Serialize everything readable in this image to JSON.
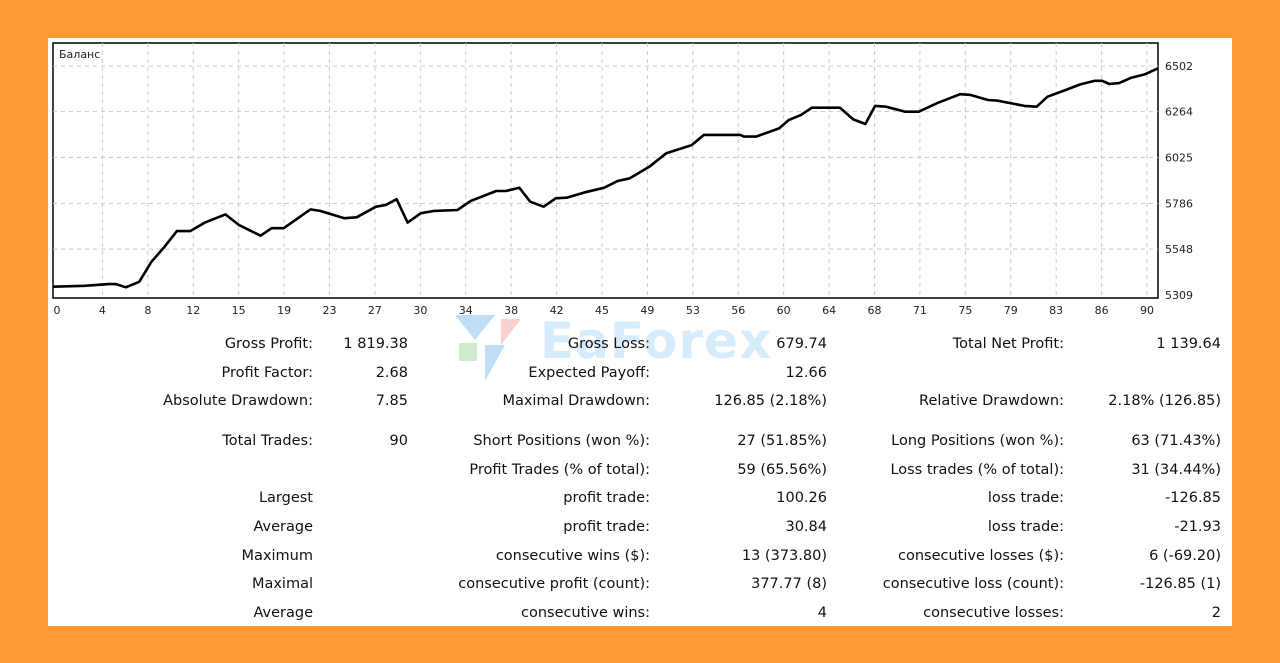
{
  "watermark": "EaForex",
  "colors": {
    "background": "#fe9a33",
    "line": "#000000",
    "grid": "#c8c8c8"
  },
  "chart_data": {
    "type": "line",
    "title": "Баланс",
    "xlabel": "",
    "ylabel": "",
    "xlim": [
      0,
      91
    ],
    "ylim": [
      5309,
      6502
    ],
    "grid": true,
    "x_ticks": [
      "0",
      "4",
      "8",
      "12",
      "15",
      "19",
      "23",
      "27",
      "30",
      "34",
      "38",
      "42",
      "45",
      "49",
      "53",
      "56",
      "60",
      "64",
      "68",
      "71",
      "75",
      "79",
      "83",
      "86",
      "90"
    ],
    "y_ticks": [
      "5309",
      "5548",
      "5786",
      "6025",
      "6264",
      "6502"
    ],
    "series": [
      {
        "name": "Баланс",
        "points": [
          [
            0,
            5352
          ],
          [
            2.6,
            5357
          ],
          [
            4.6,
            5366
          ],
          [
            5.2,
            5366
          ],
          [
            6.0,
            5349
          ],
          [
            7.1,
            5378
          ],
          [
            8.1,
            5482
          ],
          [
            9.2,
            5561
          ],
          [
            10.2,
            5642
          ],
          [
            11.3,
            5642
          ],
          [
            12.5,
            5686
          ],
          [
            14.2,
            5729
          ],
          [
            15.3,
            5674
          ],
          [
            17.1,
            5618
          ],
          [
            18,
            5657
          ],
          [
            19,
            5657
          ],
          [
            21.2,
            5755
          ],
          [
            22,
            5747
          ],
          [
            24,
            5709
          ],
          [
            25,
            5714
          ],
          [
            26.6,
            5769
          ],
          [
            27.4,
            5778
          ],
          [
            28.3,
            5808
          ],
          [
            29.2,
            5686
          ],
          [
            30.3,
            5735
          ],
          [
            31.4,
            5747
          ],
          [
            33.3,
            5752
          ],
          [
            34.4,
            5799
          ],
          [
            36.5,
            5851
          ],
          [
            37.3,
            5851
          ],
          [
            38.4,
            5868
          ],
          [
            39.3,
            5795
          ],
          [
            40.4,
            5769
          ],
          [
            41.4,
            5813
          ],
          [
            42.3,
            5816
          ],
          [
            43.7,
            5842
          ],
          [
            45.4,
            5868
          ],
          [
            46.5,
            5903
          ],
          [
            47.5,
            5917
          ],
          [
            49.1,
            5977
          ],
          [
            50.5,
            6047
          ],
          [
            52.6,
            6090
          ],
          [
            53.6,
            6143
          ],
          [
            56.6,
            6143
          ],
          [
            56.9,
            6134
          ],
          [
            57.9,
            6134
          ],
          [
            59.8,
            6177
          ],
          [
            60.6,
            6221
          ],
          [
            61.6,
            6247
          ],
          [
            62.5,
            6285
          ],
          [
            64.8,
            6285
          ],
          [
            65.9,
            6224
          ],
          [
            66.9,
            6200
          ],
          [
            67.7,
            6294
          ],
          [
            68.6,
            6290
          ],
          [
            70.2,
            6264
          ],
          [
            71.3,
            6264
          ],
          [
            72.8,
            6308
          ],
          [
            74.7,
            6355
          ],
          [
            75.5,
            6352
          ],
          [
            77,
            6325
          ],
          [
            77.8,
            6321
          ],
          [
            79.2,
            6304
          ],
          [
            80,
            6294
          ],
          [
            81,
            6290
          ],
          [
            81.9,
            6342
          ],
          [
            83.4,
            6377
          ],
          [
            84.6,
            6406
          ],
          [
            85.8,
            6425
          ],
          [
            86.4,
            6425
          ],
          [
            87,
            6408
          ],
          [
            87.8,
            6413
          ],
          [
            88.8,
            6441
          ],
          [
            89.9,
            6458
          ],
          [
            91,
            6490
          ]
        ]
      }
    ]
  },
  "stats": [
    [
      "Gross Profit:",
      "1 819.38",
      "Gross Loss:",
      "679.74",
      "Total Net Profit:",
      "1 139.64"
    ],
    [
      "Profit Factor:",
      "2.68",
      "Expected Payoff:",
      "12.66",
      "",
      ""
    ],
    [
      "Absolute Drawdown:",
      "7.85",
      "Maximal Drawdown:",
      "126.85 (2.18%)",
      "Relative Drawdown:",
      "2.18% (126.85)"
    ],
    [
      "Total Trades:",
      "90",
      "Short Positions (won %):",
      "27 (51.85%)",
      "Long Positions (won %):",
      "63 (71.43%)"
    ],
    [
      "",
      "",
      "Profit Trades (% of total):",
      "59 (65.56%)",
      "Loss trades (% of total):",
      "31 (34.44%)"
    ],
    [
      "Largest",
      "",
      "profit trade:",
      "100.26",
      "loss trade:",
      "-126.85"
    ],
    [
      "Average",
      "",
      "profit trade:",
      "30.84",
      "loss trade:",
      "-21.93"
    ],
    [
      "Maximum",
      "",
      "consecutive wins ($):",
      "13 (373.80)",
      "consecutive losses ($):",
      "6 (-69.20)"
    ],
    [
      "Maximal",
      "",
      "consecutive profit (count):",
      "377.77 (8)",
      "consecutive loss (count):",
      "-126.85 (1)"
    ],
    [
      "Average",
      "",
      "consecutive wins:",
      "4",
      "consecutive losses:",
      "2"
    ]
  ]
}
